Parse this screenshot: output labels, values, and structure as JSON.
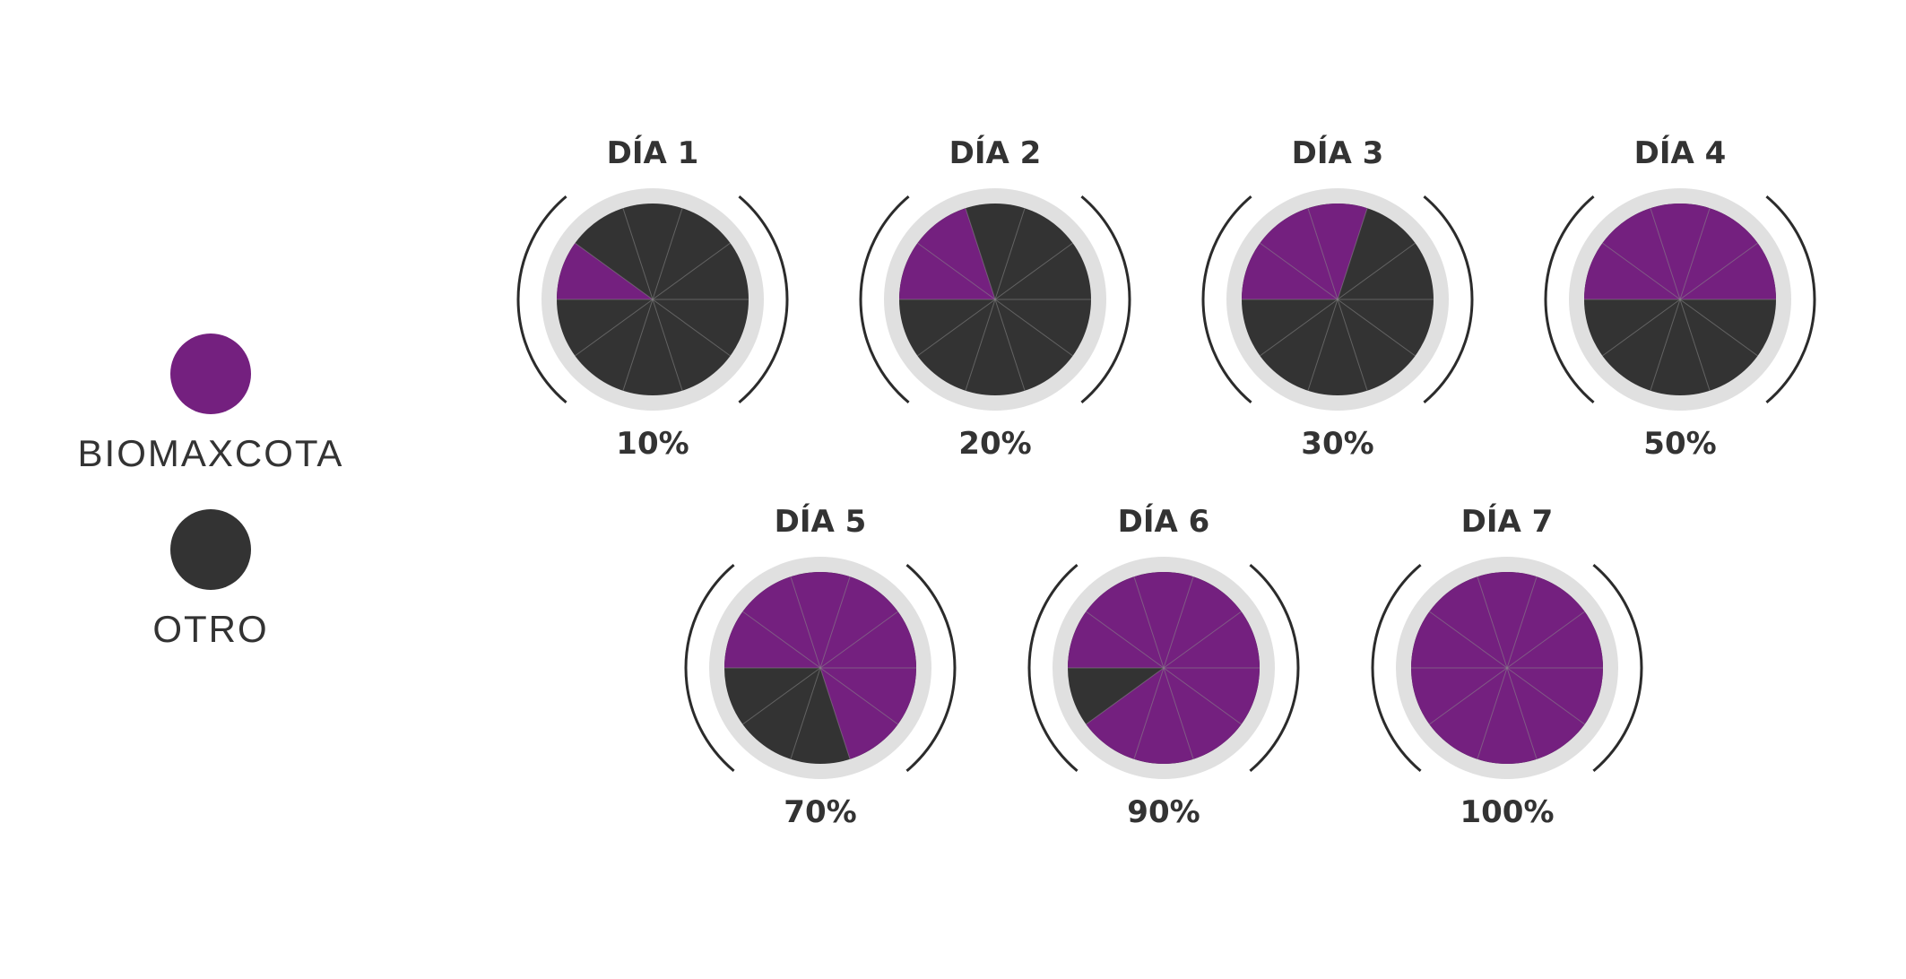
{
  "legend": {
    "items": [
      {
        "label": "BIOMAXCOTA",
        "color": "#74207f"
      },
      {
        "label": "OTRO",
        "color": "#333333"
      }
    ]
  },
  "colors": {
    "ring": "#e0e0e0",
    "arc": "#2b2b2b",
    "divider": "#8a8a8a",
    "text": "#333333"
  },
  "chart_data": {
    "type": "pie",
    "segments_per_pie": 10,
    "series": [
      "BIOMAXCOTA",
      "OTRO"
    ],
    "pies": [
      {
        "title": "DÍA 1",
        "label": "10%",
        "value": 10
      },
      {
        "title": "DÍA 2",
        "label": "20%",
        "value": 20
      },
      {
        "title": "DÍA 3",
        "label": "30%",
        "value": 30
      },
      {
        "title": "DÍA 4",
        "label": "50%",
        "value": 50
      },
      {
        "title": "DÍA 5",
        "label": "70%",
        "value": 70
      },
      {
        "title": "DÍA 6",
        "label": "90%",
        "value": 90
      },
      {
        "title": "DÍA 7",
        "label": "100%",
        "value": 100
      }
    ]
  }
}
